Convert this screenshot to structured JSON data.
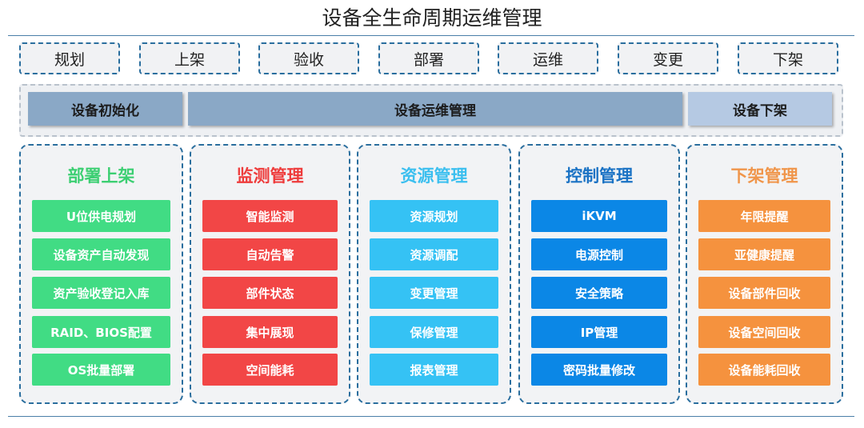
{
  "title": "设备全生命周期运维管理",
  "phases": [
    "规划",
    "上架",
    "验收",
    "部署",
    "运维",
    "变更",
    "下架"
  ],
  "stages": [
    {
      "label": "设备初始化",
      "color": "#8aa8c6"
    },
    {
      "label": "设备运维管理",
      "color": "#8aa8c6"
    },
    {
      "label": "设备下架",
      "color": "#b5c9e3"
    }
  ],
  "columns": [
    {
      "title": "部署上架",
      "title_color": "#3ccf72",
      "item_color": "#41dc84",
      "items": [
        "U位供电规划",
        "设备资产自动发现",
        "资产验收登记入库",
        "RAID、BIOS配置",
        "OS批量部署"
      ]
    },
    {
      "title": "监测管理",
      "title_color": "#ee3b3b",
      "item_color": "#f24646",
      "items": [
        "智能监测",
        "自动告警",
        "部件状态",
        "集中展现",
        "空间能耗"
      ]
    },
    {
      "title": "资源管理",
      "title_color": "#3bbfef",
      "item_color": "#35c2f4",
      "items": [
        "资源规划",
        "资源调配",
        "变更管理",
        "保修管理",
        "报表管理"
      ]
    },
    {
      "title": "控制管理",
      "title_color": "#1a72c4",
      "item_color": "#0b87e6",
      "items": [
        "iKVM",
        "电源控制",
        "安全策略",
        "IP管理",
        "密码批量修改"
      ]
    },
    {
      "title": "下架管理",
      "title_color": "#f0954a",
      "item_color": "#f5923e",
      "items": [
        "年限提醒",
        "亚健康提醒",
        "设备部件回收",
        "设备空间回收",
        "设备能耗回收"
      ]
    }
  ]
}
